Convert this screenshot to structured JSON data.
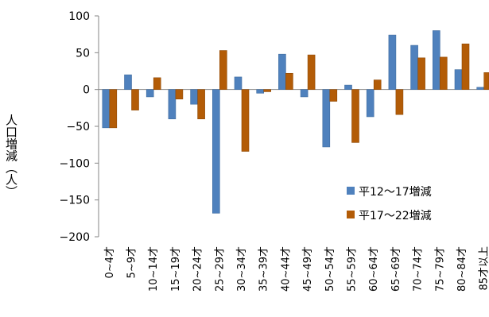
{
  "chart_data": {
    "type": "bar",
    "ylabel": "人口増減（人）",
    "ylim": [
      -200,
      100
    ],
    "yticks": [
      100,
      50,
      0,
      -50,
      -100,
      -150,
      -200
    ],
    "grid": false,
    "legend_position": "bottom-right",
    "categories": [
      "0~4才",
      "5~9才",
      "10~14才",
      "15~19才",
      "20~24才",
      "25~29才",
      "30~34才",
      "35~39才",
      "40~44才",
      "45~49才",
      "50~54才",
      "55~59才",
      "60~64才",
      "65~69才",
      "70~74才",
      "75~79才",
      "80~84才",
      "85才以上"
    ],
    "series": [
      {
        "name": "平12～17増減",
        "color": "#4f81bd",
        "values": [
          -52,
          20,
          -10,
          -40,
          -20,
          -168,
          17,
          -5,
          48,
          -10,
          -78,
          6,
          -37,
          74,
          60,
          80,
          27,
          3
        ]
      },
      {
        "name": "平17～22増減",
        "color": "#b35c07",
        "values": [
          -52,
          -28,
          16,
          -13,
          -40,
          53,
          -84,
          -3,
          22,
          47,
          -16,
          -72,
          13,
          -34,
          43,
          44,
          62,
          23
        ]
      }
    ]
  }
}
